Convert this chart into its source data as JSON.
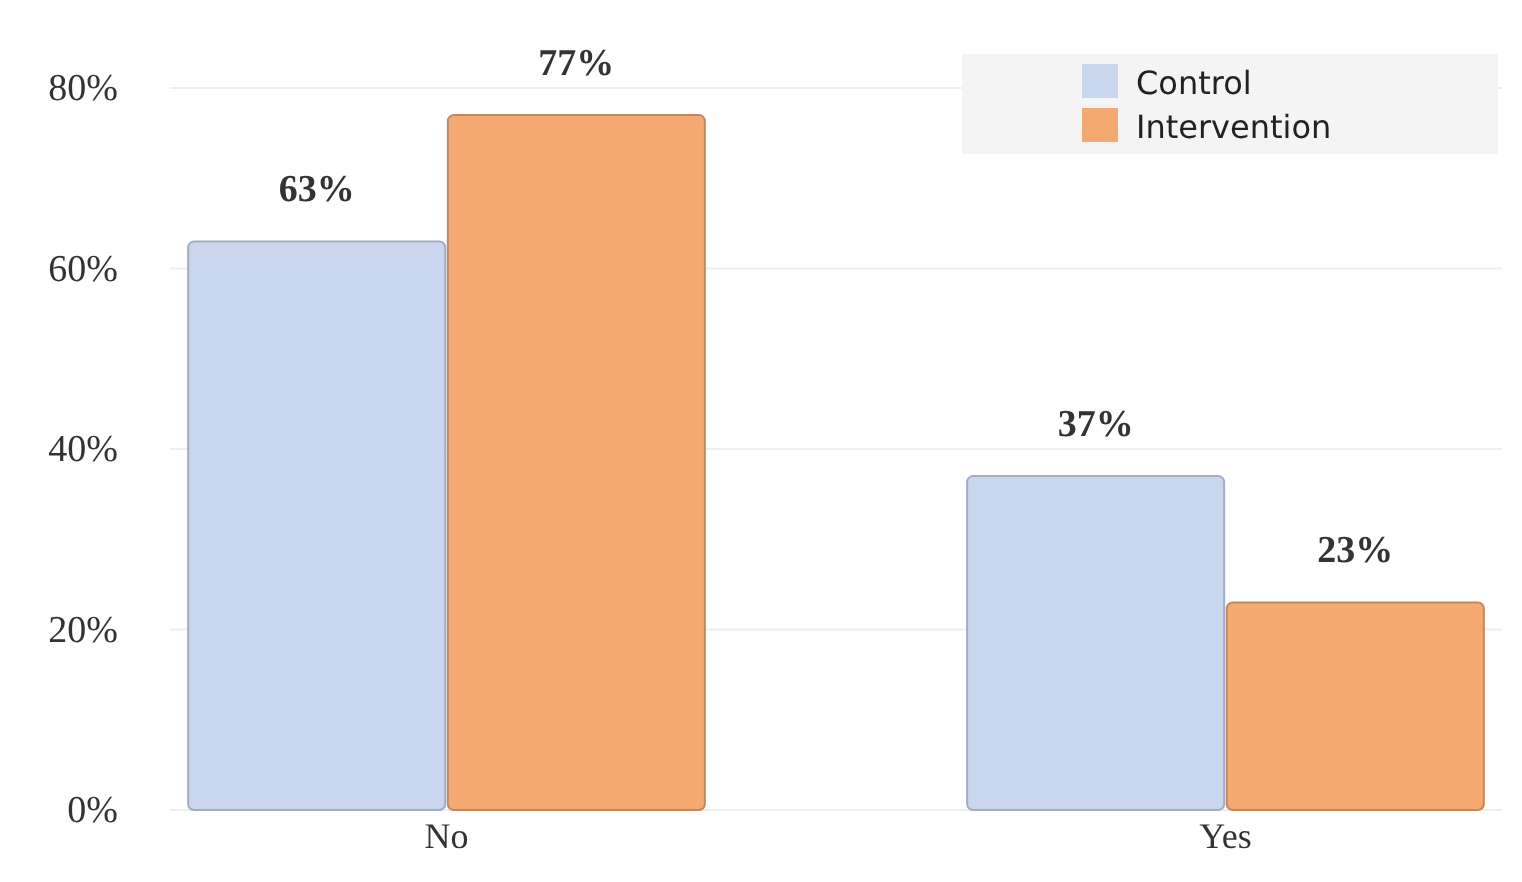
{
  "chart_data": {
    "type": "bar",
    "categories": [
      "No",
      "Yes"
    ],
    "series": [
      {
        "name": "Control",
        "color": "#c9d6ee",
        "values": [
          63,
          37
        ]
      },
      {
        "name": "Intervention",
        "color": "#f4a872",
        "values": [
          77,
          23
        ]
      }
    ],
    "ylim": [
      0,
      80
    ],
    "yticks": [
      {
        "value": 0,
        "label": "0%"
      },
      {
        "value": 20,
        "label": "20%"
      },
      {
        "value": 40,
        "label": "40%"
      },
      {
        "value": 60,
        "label": "60%"
      },
      {
        "value": 80,
        "label": "80%"
      }
    ],
    "value_labels": [
      [
        "63%",
        "37%"
      ],
      [
        "77%",
        "23%"
      ]
    ],
    "grid": "y",
    "legend": "top right"
  }
}
